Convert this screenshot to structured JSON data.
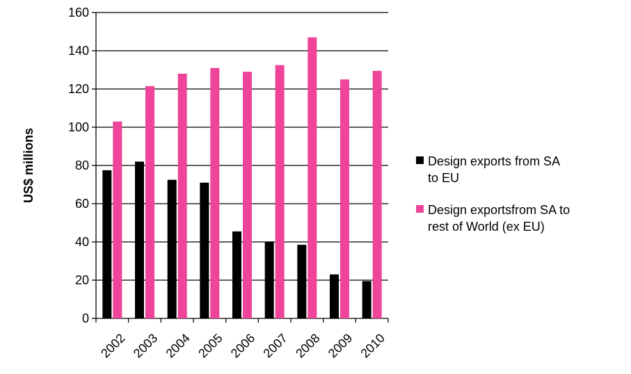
{
  "chart_data": {
    "type": "bar",
    "title": "",
    "xlabel": "",
    "ylabel": "US$ millions",
    "ylim": [
      0,
      160
    ],
    "y_ticks": [
      "0",
      "20",
      "40",
      "60",
      "80",
      "100",
      "120",
      "140",
      "160"
    ],
    "grid": "horizontal",
    "legend_position": "right",
    "categories": [
      "2002",
      "2003",
      "2004",
      "2005",
      "2006",
      "2007",
      "2008",
      "2009",
      "2010"
    ],
    "series": [
      {
        "name": "Design exports from SA to EU",
        "name_lines": [
          "Design exports from SA",
          "to EU"
        ],
        "color": "#000000",
        "values": [
          77.5,
          82,
          72.5,
          71,
          45.5,
          40,
          38.5,
          23,
          19.5
        ]
      },
      {
        "name": "Design exportsfrom SA to rest of World (ex EU)",
        "name_lines": [
          "Design exportsfrom SA to",
          "rest of World (ex EU)"
        ],
        "color": "#EE4499",
        "values": [
          103,
          121.5,
          128,
          131,
          129,
          132.5,
          147,
          125,
          129.5
        ]
      }
    ]
  }
}
